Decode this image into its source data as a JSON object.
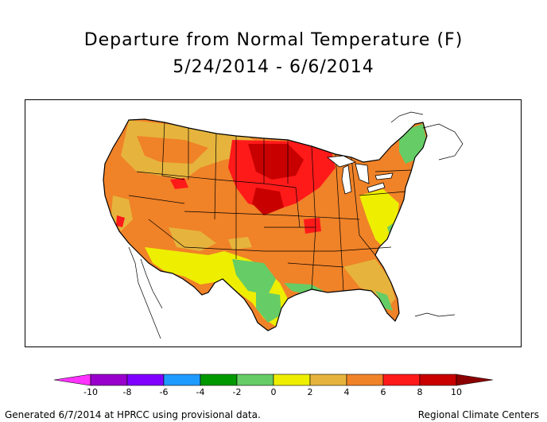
{
  "title": {
    "line1": "Departure from Normal Temperature (F)",
    "line2": "5/24/2014 - 6/6/2014"
  },
  "legend": {
    "tick_labels": [
      "-10",
      "-8",
      "-6",
      "-4",
      "-2",
      "0",
      "2",
      "4",
      "6",
      "8",
      "10"
    ],
    "colors": [
      "#ff33ff",
      "#9900cc",
      "#7f00ff",
      "#1e9bff",
      "#009900",
      "#66cc66",
      "#eeee00",
      "#e6b43c",
      "#f08228",
      "#ff1a1a",
      "#c80000",
      "#8b0000"
    ]
  },
  "footer": {
    "left": "Generated 6/7/2014 at HPRCC using provisional data.",
    "right": "Regional Climate Centers"
  },
  "palette": {
    "yellow": "#eeee00",
    "light_green": "#66cc66",
    "green": "#009900",
    "gold": "#e6b43c",
    "orange": "#f08228",
    "red": "#ff1a1a",
    "dark_red": "#c80000"
  }
}
